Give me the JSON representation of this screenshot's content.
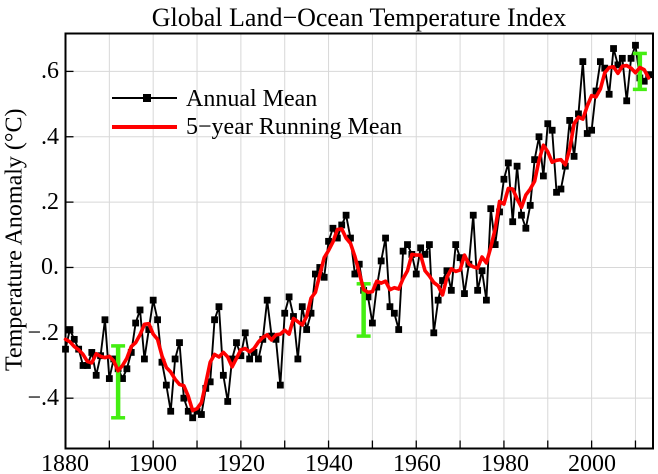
{
  "title": "Global Land−Ocean Temperature Index",
  "y_axis": {
    "label": "Temperature Anomaly (°C)",
    "tick_labels": [
      ".6",
      ".4",
      ".2",
      "0.",
      "−.2",
      "−.4"
    ],
    "tick_values": [
      0.6,
      0.4,
      0.2,
      0.0,
      -0.2,
      -0.4
    ]
  },
  "x_axis": {
    "tick_labels": [
      "1880",
      "1900",
      "1920",
      "1940",
      "1960",
      "1980",
      "2000"
    ],
    "tick_values": [
      1880,
      1900,
      1920,
      1940,
      1960,
      1980,
      2000
    ]
  },
  "legend": [
    {
      "label": "Annual Mean",
      "color": "#000000",
      "marker": "square"
    },
    {
      "label": "5−year Running Mean",
      "color": "#ff0000",
      "marker": "none"
    }
  ],
  "colors": {
    "annual_line": "#000000",
    "running_mean_line": "#ff0000",
    "error_bar": "#44ee11",
    "gridline": "#d8d8d8",
    "frame": "#000000",
    "background": "#ffffff"
  },
  "chart_data": {
    "type": "line",
    "title": "Global Land−Ocean Temperature Index",
    "xlabel": "",
    "ylabel": "Temperature Anomaly (°C)",
    "xlim": [
      1880,
      2014
    ],
    "ylim": [
      -0.554,
      0.716
    ],
    "grid": {
      "x_step_years": 10,
      "y_step": 0.2,
      "visible": true
    },
    "legend_position": "upper-left-inside",
    "start_year": 1880,
    "end_year": 2013,
    "series": [
      {
        "name": "Annual Mean",
        "style": "black line with square markers",
        "values": [
          -0.25,
          -0.19,
          -0.22,
          -0.25,
          -0.3,
          -0.3,
          -0.26,
          -0.33,
          -0.27,
          -0.16,
          -0.34,
          -0.28,
          -0.31,
          -0.34,
          -0.31,
          -0.26,
          -0.17,
          -0.13,
          -0.28,
          -0.19,
          -0.1,
          -0.16,
          -0.29,
          -0.36,
          -0.44,
          -0.28,
          -0.23,
          -0.4,
          -0.44,
          -0.46,
          -0.44,
          -0.45,
          -0.37,
          -0.35,
          -0.16,
          -0.12,
          -0.33,
          -0.41,
          -0.28,
          -0.23,
          -0.27,
          -0.2,
          -0.28,
          -0.26,
          -0.28,
          -0.22,
          -0.1,
          -0.21,
          -0.22,
          -0.36,
          -0.14,
          -0.09,
          -0.15,
          -0.28,
          -0.12,
          -0.19,
          -0.14,
          -0.02,
          0.0,
          -0.03,
          0.08,
          0.12,
          0.09,
          0.13,
          0.16,
          0.09,
          -0.02,
          0.01,
          -0.07,
          -0.09,
          -0.17,
          -0.06,
          0.02,
          0.09,
          -0.12,
          -0.14,
          -0.19,
          0.05,
          0.07,
          0.04,
          -0.02,
          0.06,
          0.04,
          0.07,
          -0.2,
          -0.1,
          -0.04,
          -0.01,
          -0.07,
          0.07,
          0.03,
          -0.08,
          0.01,
          0.16,
          -0.07,
          -0.01,
          -0.1,
          0.18,
          0.07,
          0.17,
          0.27,
          0.32,
          0.14,
          0.31,
          0.16,
          0.12,
          0.19,
          0.33,
          0.4,
          0.28,
          0.44,
          0.42,
          0.23,
          0.24,
          0.31,
          0.45,
          0.34,
          0.47,
          0.63,
          0.41,
          0.42,
          0.54,
          0.63,
          0.61,
          0.53,
          0.67,
          0.62,
          0.64,
          0.51,
          0.64,
          0.68,
          0.58,
          0.57,
          0.59
        ]
      },
      {
        "name": "5-year Running Mean",
        "style": "red line",
        "derivation": "centered 5-year running mean of Annual Mean (truncated window at series ends)"
      }
    ],
    "error_bars": [
      {
        "year": 1892,
        "center": -0.35,
        "half_width": 0.11
      },
      {
        "year": 1948,
        "center": -0.13,
        "half_width": 0.08
      },
      {
        "year": 2011,
        "center": 0.6,
        "half_width": 0.055
      }
    ]
  }
}
